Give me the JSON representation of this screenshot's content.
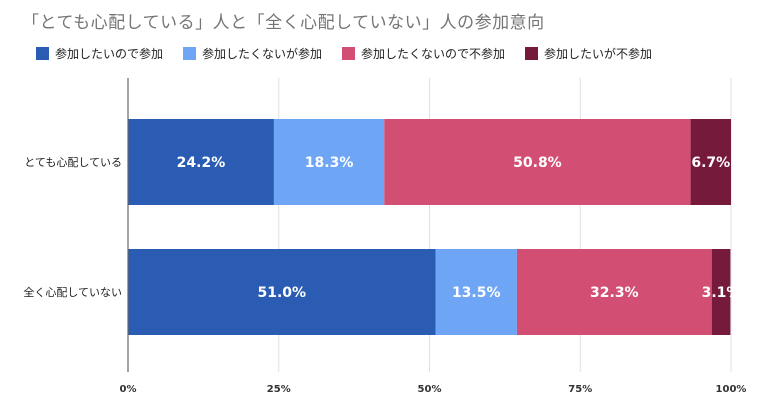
{
  "title": "「とても心配している」人と「全く心配していない」人の参加意向",
  "chart_data": {
    "type": "bar",
    "orientation": "horizontal",
    "stacked": true,
    "percent": true,
    "title": "「とても心配している」人と「全く心配していない」人の参加意向",
    "categories": [
      "とても心配している",
      "全く心配していない"
    ],
    "series": [
      {
        "name": "参加したいので参加",
        "values": [
          24.2,
          51.0
        ],
        "labels": [
          "24.2%",
          "51.0%"
        ],
        "color": "#2b5cb4"
      },
      {
        "name": "参加したくないが参加",
        "values": [
          18.3,
          13.5
        ],
        "labels": [
          "18.3%",
          "13.5%"
        ],
        "color": "#6ea6f5"
      },
      {
        "name": "参加したくないので不参加",
        "values": [
          50.8,
          32.3
        ],
        "labels": [
          "50.8%",
          "32.3%"
        ],
        "color": "#d24f73"
      },
      {
        "name": "参加したいが不参加",
        "values": [
          6.7,
          3.1
        ],
        "labels": [
          "6.7%",
          "3.1%"
        ],
        "color": "#761a3c"
      }
    ],
    "xlim": [
      0,
      100
    ],
    "ticks": [
      0,
      25,
      50,
      75,
      100
    ],
    "tick_labels": [
      "0%",
      "25%",
      "50%",
      "75%",
      "100%"
    ],
    "grid": true,
    "legend_position": "top"
  }
}
